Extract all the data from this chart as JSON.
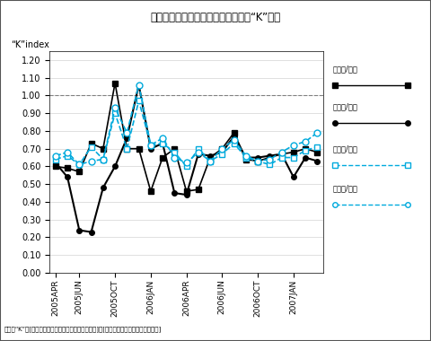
{
  "title": "図．卵電力取引の固定費回収度指数“K”推移",
  "ylabel": "“K”index",
  "footnote": "図注）“K”＝[各月の価格推移による固定費相当収益]／[各月の電力供給に要した固定費]",
  "x_labels": [
    "2005APR",
    "2005JUN",
    "2005OCT",
    "2006JAN",
    "2006APR",
    "2006JUN",
    "2006OCT",
    "2007JAN"
  ],
  "ylim": [
    0.0,
    1.25
  ],
  "yticks": [
    0.0,
    0.1,
    0.2,
    0.3,
    0.4,
    0.5,
    0.6,
    0.7,
    0.8,
    0.9,
    1.0,
    1.1,
    1.2
  ],
  "legend_labels": [
    "東日本/平日",
    "西日本/平日",
    "東日本/休日",
    "西日本/休日"
  ],
  "series": {
    "east_weekday": {
      "color": "#000000",
      "marker": "s",
      "linestyle": "-",
      "markersize": 4,
      "linewidth": 1.2,
      "markerfacecolor": "#000000",
      "values": [
        0.6,
        0.59,
        0.57,
        0.73,
        0.7,
        1.07,
        0.7,
        0.7,
        0.46,
        0.65,
        0.7,
        0.46,
        0.47,
        0.65,
        0.7,
        0.79,
        0.64,
        0.63,
        0.65,
        0.67,
        0.68,
        0.7,
        0.68
      ]
    },
    "west_weekday": {
      "color": "#000000",
      "marker": "o",
      "linestyle": "-",
      "markersize": 4,
      "linewidth": 1.5,
      "markerfacecolor": "#000000",
      "values": [
        0.62,
        0.54,
        0.24,
        0.23,
        0.48,
        0.6,
        0.76,
        1.06,
        0.7,
        0.73,
        0.45,
        0.44,
        0.67,
        0.66,
        0.68,
        0.77,
        0.65,
        0.65,
        0.66,
        0.67,
        0.54,
        0.65,
        0.63
      ]
    },
    "east_holiday": {
      "color": "#00aadd",
      "marker": "s",
      "linestyle": "--",
      "markersize": 4,
      "linewidth": 1.2,
      "markerfacecolor": "white",
      "values": [
        0.64,
        0.66,
        0.61,
        0.71,
        0.64,
        0.9,
        0.7,
        0.97,
        0.72,
        0.73,
        0.68,
        0.6,
        0.7,
        0.63,
        0.67,
        0.73,
        0.65,
        0.63,
        0.61,
        0.65,
        0.65,
        0.69,
        0.71
      ]
    },
    "west_holiday": {
      "color": "#00aadd",
      "marker": "o",
      "linestyle": "--",
      "markersize": 5,
      "linewidth": 1.2,
      "markerfacecolor": "white",
      "values": [
        0.66,
        0.68,
        0.61,
        0.63,
        0.64,
        0.93,
        0.79,
        1.06,
        0.72,
        0.76,
        0.65,
        0.62,
        0.68,
        0.63,
        0.7,
        0.75,
        0.66,
        0.63,
        0.64,
        0.68,
        0.72,
        0.74,
        0.79
      ]
    }
  },
  "reference_line": 1.0,
  "background_color": "#ffffff",
  "plot_bg_color": "#ffffff",
  "legend_bg_color": "#cce8f4",
  "n_points": 23
}
